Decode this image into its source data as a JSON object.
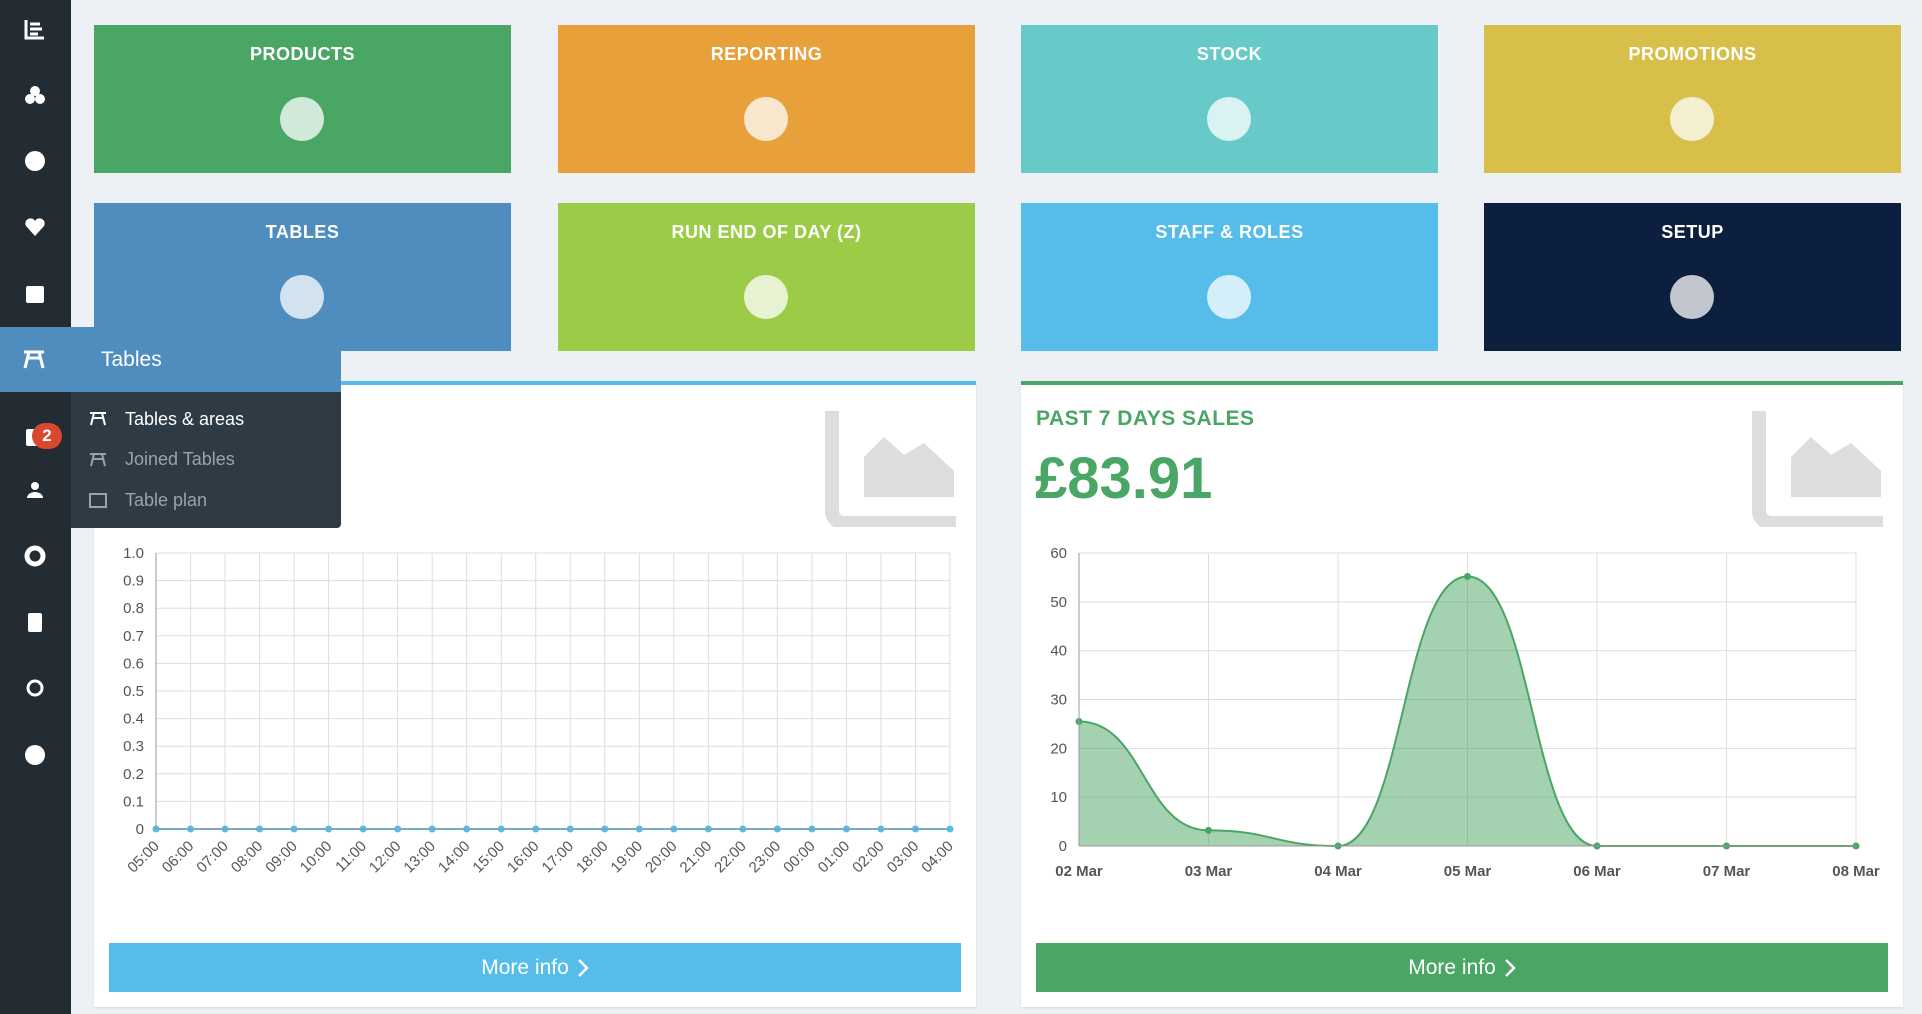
{
  "sidebar": {
    "badge": "2"
  },
  "tiles": [
    "PRODUCTS",
    "REPORTING",
    "STOCK",
    "PROMOTIONS",
    "TABLES",
    "RUN END OF DAY (Z)",
    "STAFF & ROLES",
    "SETUP"
  ],
  "menu": {
    "title": "Tables",
    "items": [
      "Tables & areas",
      "Joined Tables",
      "Table plan"
    ]
  },
  "panels": [
    {
      "chart": {
        "type": "line",
        "color": "#56bdea",
        "grid": true,
        "x": [
          "05:00",
          "06:00",
          "07:00",
          "08:00",
          "09:00",
          "10:00",
          "11:00",
          "12:00",
          "13:00",
          "14:00",
          "15:00",
          "16:00",
          "17:00",
          "18:00",
          "19:00",
          "20:00",
          "21:00",
          "22:00",
          "23:00",
          "00:00",
          "01:00",
          "02:00",
          "03:00",
          "04:00"
        ],
        "values": [
          0,
          0,
          0,
          0,
          0,
          0,
          0,
          0,
          0,
          0,
          0,
          0,
          0,
          0,
          0,
          0,
          0,
          0,
          0,
          0,
          0,
          0,
          0,
          0
        ],
        "ylim": [
          0,
          1
        ],
        "yticks": [
          0,
          0.1,
          0.2,
          0.3,
          0.4,
          0.5,
          0.6,
          0.7,
          0.8,
          0.9,
          {
            "value": 1,
            "label": "1.0"
          }
        ]
      },
      "button": "More info"
    },
    {
      "title": "PAST 7 DAYS SALES",
      "value": "£83.91",
      "chart": {
        "type": "area",
        "color": "#4aa664",
        "grid": true,
        "x": [
          "02 Mar",
          "03 Mar",
          "04 Mar",
          "05 Mar",
          "06 Mar",
          "07 Mar",
          "08 Mar"
        ],
        "values": [
          25.5,
          3.2,
          0,
          55.2,
          0,
          0,
          0
        ],
        "ylim": [
          0,
          60
        ],
        "yticks": [
          0,
          10,
          20,
          30,
          40,
          50,
          60
        ]
      },
      "button": "More info"
    }
  ]
}
